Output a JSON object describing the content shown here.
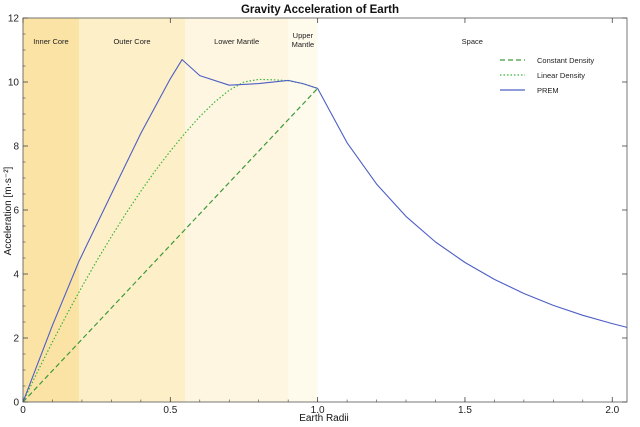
{
  "chart_data": {
    "type": "line",
    "title": "Gravity Acceleration of Earth",
    "xlabel": "Earth Radii",
    "ylabel": "Acceleration [m·s⁻²]",
    "xlim": [
      0,
      2.05
    ],
    "ylim": [
      0,
      12
    ],
    "x_ticks": [
      0,
      0.5,
      1.0,
      1.5,
      2.0
    ],
    "x_tick_labels": [
      "0",
      "0.5",
      "1.0",
      "1.5",
      "2.0"
    ],
    "y_ticks": [
      0,
      2,
      4,
      6,
      8,
      10,
      12
    ],
    "y_tick_labels": [
      "0",
      "2",
      "4",
      "6",
      "8",
      "10",
      "12"
    ],
    "grid": false,
    "legend_position": "top-right",
    "regions": [
      {
        "label": "Inner Core",
        "x0": 0,
        "x1": 0.19,
        "color": "#fbe3a6"
      },
      {
        "label": "Outer Core",
        "x0": 0.19,
        "x1": 0.55,
        "color": "#fdefc8"
      },
      {
        "label": "Lower Mantle",
        "x0": 0.55,
        "x1": 0.9,
        "color": "#fef6e0"
      },
      {
        "label": "Upper\nMantle",
        "x0": 0.9,
        "x1": 1.0,
        "color": "#fefaec"
      },
      {
        "label": "Space",
        "x0": 1.0,
        "x1": 2.05,
        "color": "#ffffff"
      }
    ],
    "series": [
      {
        "name": "Constant Density",
        "color": "#3c9a3c",
        "style": "dashed",
        "x": [
          0,
          0.25,
          0.5,
          0.75,
          1.0
        ],
        "y": [
          0,
          2.45,
          4.9,
          7.35,
          9.8
        ]
      },
      {
        "name": "Linear Density",
        "color": "#3cb43c",
        "style": "dotted",
        "x": [
          0,
          0.05,
          0.1,
          0.15,
          0.2,
          0.25,
          0.3,
          0.35,
          0.4,
          0.45,
          0.5,
          0.55,
          0.6,
          0.65,
          0.7,
          0.75,
          0.8,
          0.85,
          0.9,
          0.95,
          1.0
        ],
        "y": [
          0,
          0.96,
          1.88,
          2.76,
          3.6,
          4.41,
          5.17,
          5.9,
          6.59,
          7.24,
          7.84,
          8.4,
          8.92,
          9.37,
          9.74,
          10.0,
          10.08,
          10.07,
          10.04,
          9.95,
          9.8
        ]
      },
      {
        "name": "PREM",
        "color": "#4d5fc4",
        "style": "solid",
        "x": [
          0,
          0.1,
          0.19,
          0.3,
          0.4,
          0.5,
          0.54,
          0.6,
          0.7,
          0.8,
          0.9,
          0.95,
          1.0,
          1.1,
          1.2,
          1.3,
          1.4,
          1.5,
          1.6,
          1.7,
          1.8,
          1.9,
          2.0,
          2.05
        ],
        "y": [
          0,
          2.4,
          4.4,
          6.5,
          8.4,
          10.1,
          10.7,
          10.2,
          9.9,
          9.95,
          10.05,
          9.95,
          9.8,
          8.1,
          6.81,
          5.8,
          5.0,
          4.36,
          3.83,
          3.39,
          3.02,
          2.71,
          2.45,
          2.33
        ]
      }
    ]
  }
}
